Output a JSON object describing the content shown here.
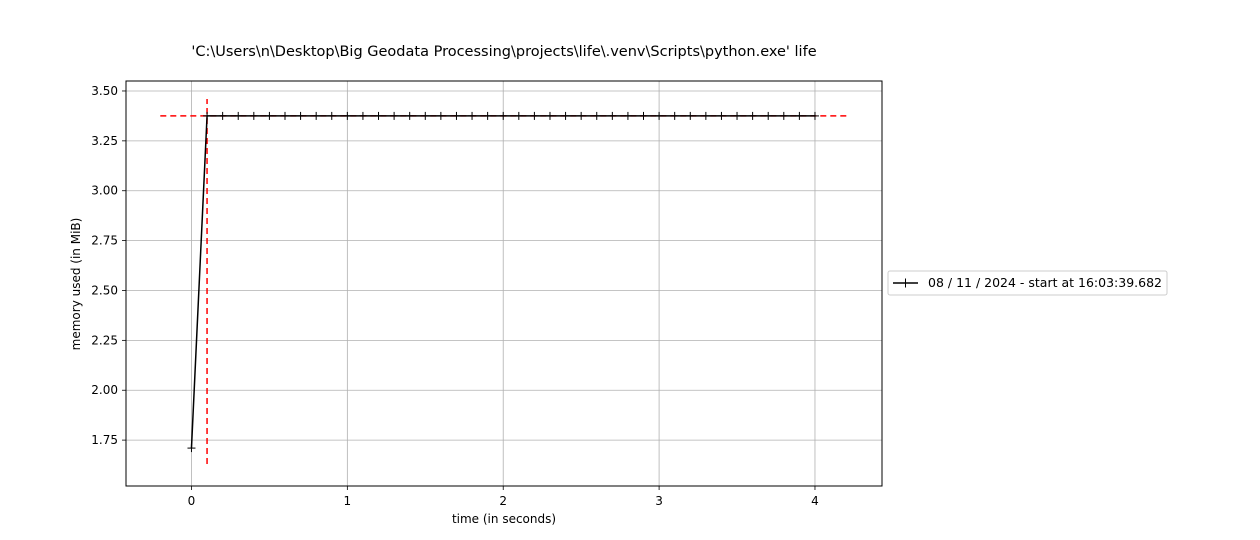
{
  "chart_data": {
    "type": "line",
    "title": "'C:\\Users\\n\\Desktop\\Big Geodata Processing\\projects\\life\\.venv\\Scripts\\python.exe' life",
    "xlabel": "time (in seconds)",
    "ylabel": "memory used (in MiB)",
    "xlim": [
      -0.42,
      4.43
    ],
    "ylim": [
      1.52,
      3.55
    ],
    "xticks": [
      0,
      1,
      2,
      3,
      4
    ],
    "xtick_labels": [
      "0",
      "1",
      "2",
      "3",
      "4"
    ],
    "yticks": [
      1.75,
      2.0,
      2.25,
      2.5,
      2.75,
      3.0,
      3.25,
      3.5
    ],
    "ytick_labels": [
      "1.75",
      "2.00",
      "2.25",
      "2.50",
      "2.75",
      "3.00",
      "3.25",
      "3.50"
    ],
    "grid": true,
    "legend_position": "center-right, outside plot",
    "series": [
      {
        "name": "08 / 11 / 2024 - start at 16:03:39.682",
        "color": "#000000",
        "marker": "+",
        "x": [
          0.0,
          0.1,
          0.2,
          0.3,
          0.4,
          0.5,
          0.6,
          0.7,
          0.8,
          0.9,
          1.0,
          1.1,
          1.2,
          1.3,
          1.4,
          1.5,
          1.6,
          1.7,
          1.8,
          1.9,
          2.0,
          2.1,
          2.2,
          2.3,
          2.4,
          2.5,
          2.6,
          2.7,
          2.8,
          2.9,
          3.0,
          3.1,
          3.2,
          3.3,
          3.4,
          3.5,
          3.6,
          3.7,
          3.8,
          3.9,
          4.0
        ],
        "y": [
          1.71,
          3.375,
          3.375,
          3.375,
          3.375,
          3.375,
          3.375,
          3.375,
          3.375,
          3.375,
          3.375,
          3.375,
          3.375,
          3.375,
          3.375,
          3.375,
          3.375,
          3.375,
          3.375,
          3.375,
          3.375,
          3.375,
          3.375,
          3.375,
          3.375,
          3.375,
          3.375,
          3.375,
          3.375,
          3.375,
          3.375,
          3.375,
          3.375,
          3.375,
          3.375,
          3.375,
          3.375,
          3.375,
          3.375,
          3.375,
          3.375
        ]
      }
    ],
    "reference_lines": [
      {
        "orientation": "horizontal",
        "value": 3.375,
        "from": -0.2,
        "to": 4.22,
        "color": "#ff0000",
        "style": "dashed"
      },
      {
        "orientation": "vertical",
        "value": 0.1,
        "from": 1.63,
        "to": 3.46,
        "color": "#ff0000",
        "style": "dashed"
      }
    ]
  }
}
